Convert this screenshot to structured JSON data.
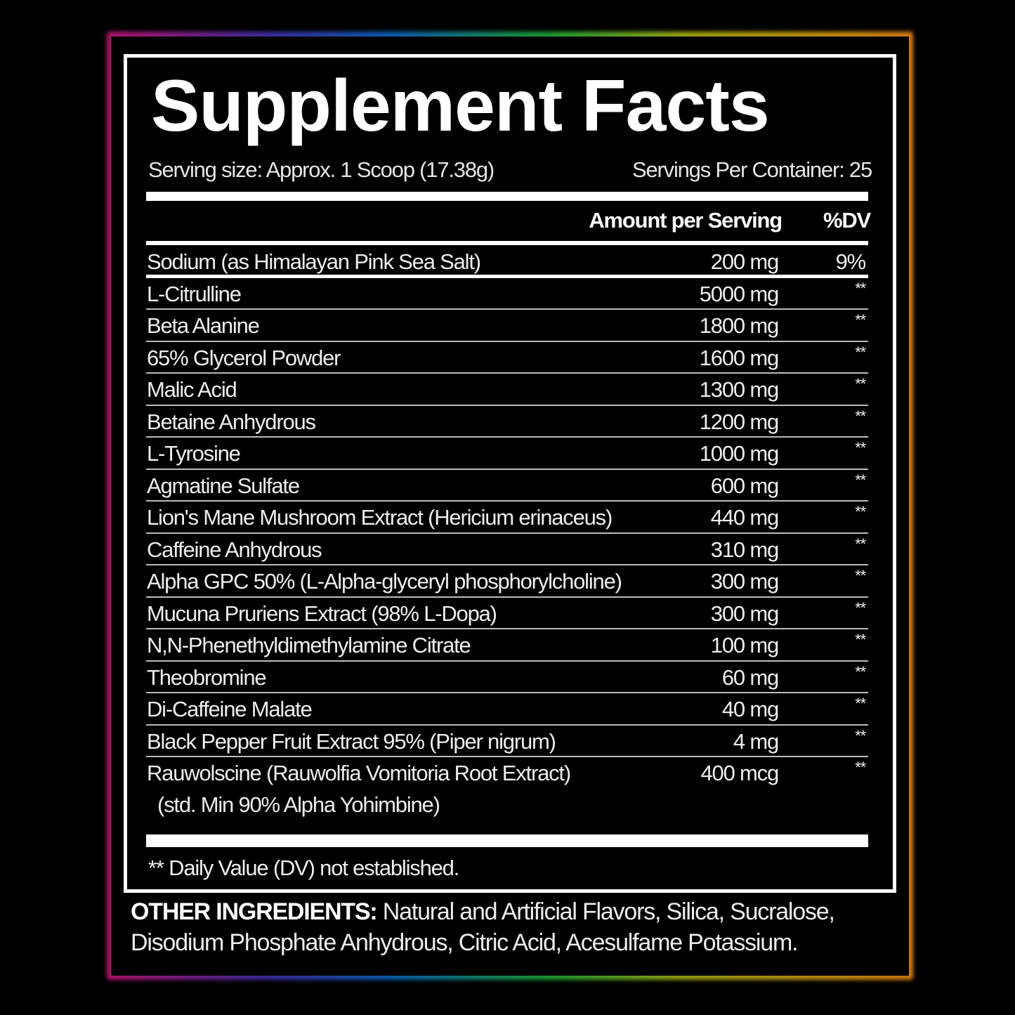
{
  "title": "Supplement Facts",
  "serving_size": "Serving size: Approx. 1 Scoop (17.38g)",
  "servings_per_container": "Servings Per Container: 25",
  "columns": {
    "amount": "Amount per Serving",
    "dv": "%DV"
  },
  "rows": [
    {
      "name": "Sodium (as Himalayan Pink Sea Salt)",
      "amount": "200 mg",
      "dv": "9%"
    },
    {
      "name": "L-Citrulline",
      "amount": "5000 mg",
      "dv": "**"
    },
    {
      "name": "Beta Alanine",
      "amount": "1800 mg",
      "dv": "**"
    },
    {
      "name": "65% Glycerol Powder",
      "amount": "1600 mg",
      "dv": "**"
    },
    {
      "name": "Malic Acid",
      "amount": "1300 mg",
      "dv": "**"
    },
    {
      "name": "Betaine Anhydrous",
      "amount": "1200 mg",
      "dv": "**"
    },
    {
      "name": "L-Tyrosine",
      "amount": "1000 mg",
      "dv": "**"
    },
    {
      "name": "Agmatine Sulfate",
      "amount": "600 mg",
      "dv": "**"
    },
    {
      "name": "Lion's Mane Mushroom Extract (Hericium erinaceus)",
      "amount": "440 mg",
      "dv": "**"
    },
    {
      "name": "Caffeine Anhydrous",
      "amount": "310 mg",
      "dv": "**"
    },
    {
      "name": "Alpha GPC 50% (L-Alpha-glyceryl phosphorylcholine)",
      "amount": "300 mg",
      "dv": "**"
    },
    {
      "name": "Mucuna Pruriens Extract (98% L-Dopa)",
      "amount": "300 mg",
      "dv": "**"
    },
    {
      "name": "N,N-Phenethyldimethylamine Citrate",
      "amount": "100 mg",
      "dv": "**"
    },
    {
      "name": "Theobromine",
      "amount": "60 mg",
      "dv": "**"
    },
    {
      "name": "Di-Caffeine Malate",
      "amount": "40 mg",
      "dv": "**"
    },
    {
      "name": "Black Pepper Fruit Extract 95% (Piper nigrum)",
      "amount": "4 mg",
      "dv": "**"
    },
    {
      "name": "Rauwolscine (Rauwolfia Vomitoria Root Extract)",
      "name2": "(std. Min 90% Alpha Yohimbine)",
      "amount": "400 mcg",
      "dv": "**"
    }
  ],
  "footnote": "** Daily Value (DV) not established.",
  "other_ingredients": {
    "label": "OTHER INGREDIENTS:",
    "text": "Natural and Artificial Flavors, Silica, Sucralose, Disodium Phosphate Anhydrous, Citric Acid, Acesulfame Potassium."
  },
  "colors": {
    "background": "#000000",
    "text": "#ffffff",
    "frame_gradient": [
      "#b0126a",
      "#0a5ab0",
      "#1a9a30",
      "#9aa010",
      "#d07a10"
    ]
  }
}
